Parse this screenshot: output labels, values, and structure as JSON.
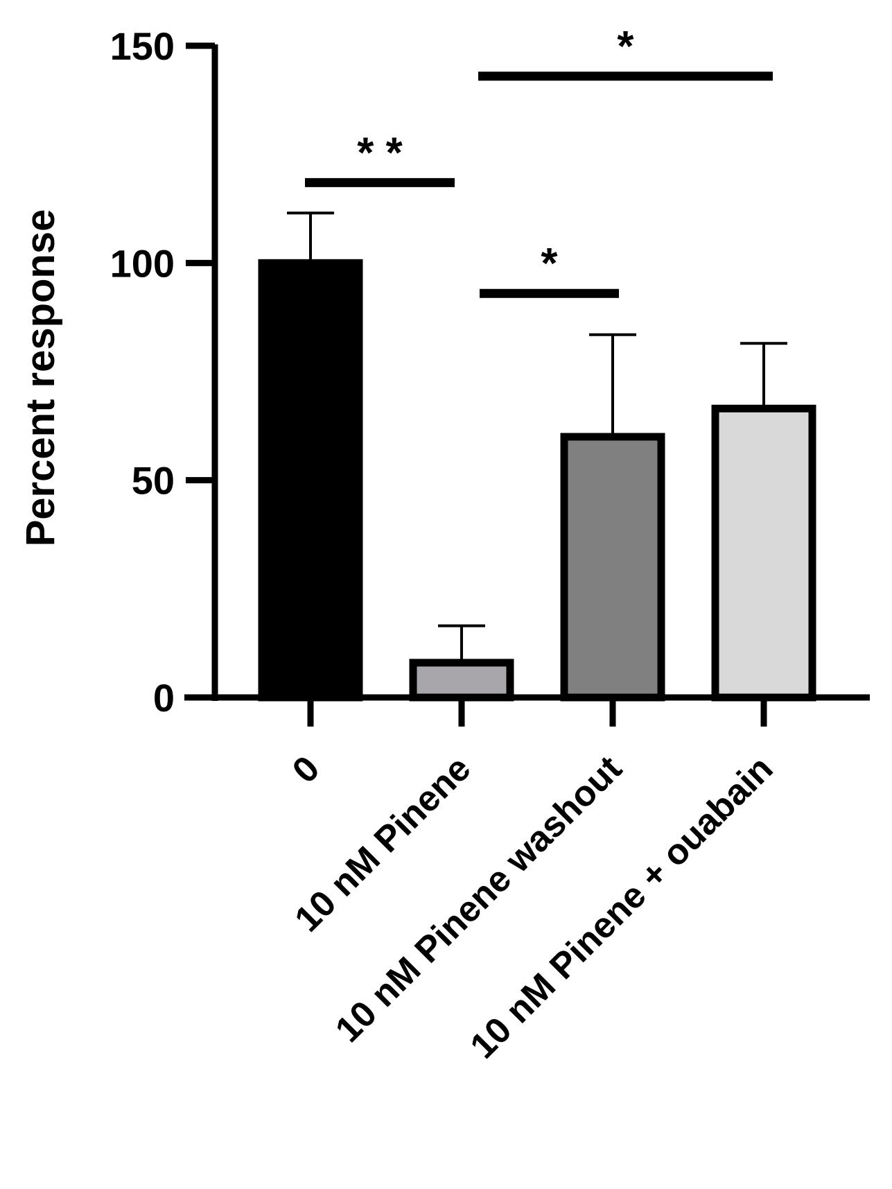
{
  "chart_data": {
    "type": "bar",
    "title": "",
    "xlabel": "",
    "ylabel": "Percent response",
    "ylim": [
      0,
      150
    ],
    "yticks": [
      0,
      50,
      100,
      150
    ],
    "grid": false,
    "legend": "none",
    "categories": [
      "0",
      "10 nM Pinene",
      "10 nM Pinene washout",
      "10 nM Pinene + ouabain"
    ],
    "values": [
      100,
      8,
      60,
      66.5
    ],
    "errors": [
      11.5,
      8.5,
      23.5,
      15
    ],
    "colors": [
      "#000000",
      "#a8a6ab",
      "#808080",
      "#d9d9d9"
    ],
    "significance": [
      {
        "from": 0,
        "to": 1,
        "y": 118.5,
        "label": "* *"
      },
      {
        "from": 1,
        "to": 2,
        "y": 93,
        "label": "*"
      },
      {
        "from": 1,
        "to": 3,
        "y": 143,
        "label": "*"
      }
    ]
  }
}
